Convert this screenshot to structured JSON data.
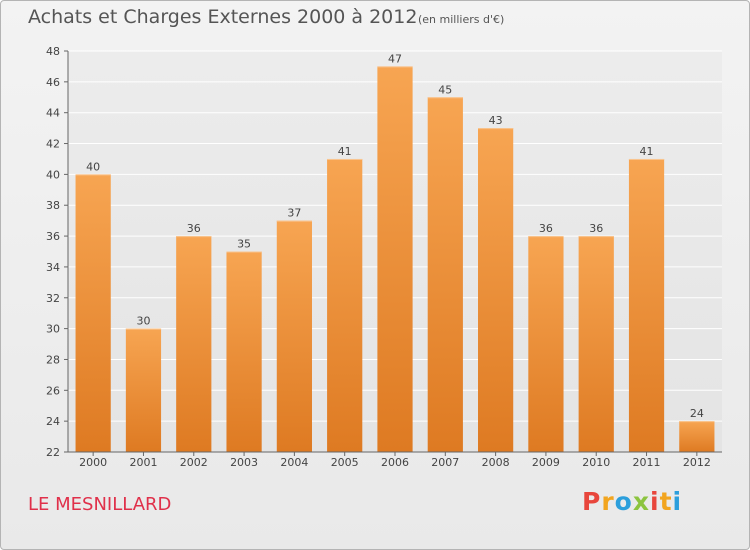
{
  "chart_data": {
    "type": "bar",
    "title": "Achats et Charges Externes 2000 à 2012",
    "subtitle": "(en milliers d'€)",
    "categories": [
      "2000",
      "2001",
      "2002",
      "2003",
      "2004",
      "2005",
      "2006",
      "2007",
      "2008",
      "2009",
      "2010",
      "2011",
      "2012"
    ],
    "values": [
      40,
      30,
      36,
      35,
      37,
      41,
      47,
      45,
      43,
      36,
      36,
      41,
      24
    ],
    "ylim": [
      22,
      48
    ],
    "yticks": [
      22,
      24,
      26,
      28,
      30,
      32,
      34,
      36,
      38,
      40,
      42,
      44,
      46,
      48
    ],
    "grid": true,
    "bar_color": "#f0993e",
    "legend": "none"
  },
  "footer": {
    "city": "LE MESNILLARD",
    "brand_letters": [
      "P",
      "r",
      "o",
      "x",
      "i",
      "t",
      "i"
    ],
    "brand_colors": [
      "#e8463c",
      "#f2a51f",
      "#2c9fdc",
      "#8cc43f",
      "#e8463c",
      "#f2a51f",
      "#2c9fdc"
    ]
  }
}
